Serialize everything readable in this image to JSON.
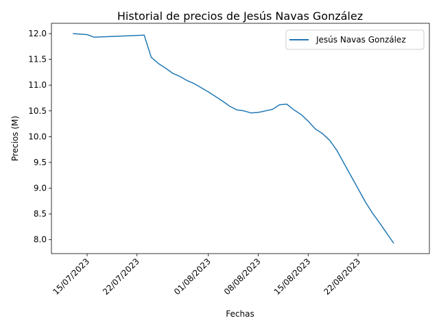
{
  "chart_data": {
    "type": "line",
    "title": "Historial de precios de Jesús Navas González",
    "xlabel": "Fechas",
    "ylabel": "Precios (M)",
    "x_tick_labels": [
      "15/07/2023",
      "22/07/2023",
      "01/08/2023",
      "08/08/2023",
      "15/08/2023",
      "22/08/2023"
    ],
    "x_tick_dates": [
      "2023-07-15",
      "2023-07-22",
      "2023-08-01",
      "2023-08-08",
      "2023-08-15",
      "2023-08-22"
    ],
    "y_ticks": [
      8.0,
      8.5,
      9.0,
      9.5,
      10.0,
      10.5,
      11.0,
      11.5,
      12.0
    ],
    "y_tick_labels": [
      "8.0",
      "8.5",
      "9.0",
      "9.5",
      "10.0",
      "10.5",
      "11.0",
      "11.5",
      "12.0"
    ],
    "xlim": [
      "2023-07-10",
      "2023-09-01"
    ],
    "ylim": [
      7.73,
      12.2
    ],
    "grid": false,
    "legend_position": "top-right",
    "series": [
      {
        "name": "Jesús Navas González",
        "color": "#1f77b4",
        "points": [
          {
            "x": "2023-07-13",
            "y": 12.0
          },
          {
            "x": "2023-07-15",
            "y": 11.98
          },
          {
            "x": "2023-07-16",
            "y": 11.93
          },
          {
            "x": "2023-07-23",
            "y": 11.97
          },
          {
            "x": "2023-07-24",
            "y": 11.54
          },
          {
            "x": "2023-07-25",
            "y": 11.42
          },
          {
            "x": "2023-07-26",
            "y": 11.33
          },
          {
            "x": "2023-07-27",
            "y": 11.23
          },
          {
            "x": "2023-07-28",
            "y": 11.17
          },
          {
            "x": "2023-07-29",
            "y": 11.09
          },
          {
            "x": "2023-07-30",
            "y": 11.03
          },
          {
            "x": "2023-07-31",
            "y": 10.95
          },
          {
            "x": "2023-08-01",
            "y": 10.87
          },
          {
            "x": "2023-08-02",
            "y": 10.78
          },
          {
            "x": "2023-08-03",
            "y": 10.69
          },
          {
            "x": "2023-08-04",
            "y": 10.59
          },
          {
            "x": "2023-08-05",
            "y": 10.52
          },
          {
            "x": "2023-08-06",
            "y": 10.5
          },
          {
            "x": "2023-08-07",
            "y": 10.46
          },
          {
            "x": "2023-08-08",
            "y": 10.47
          },
          {
            "x": "2023-08-09",
            "y": 10.5
          },
          {
            "x": "2023-08-10",
            "y": 10.53
          },
          {
            "x": "2023-08-11",
            "y": 10.62
          },
          {
            "x": "2023-08-12",
            "y": 10.63
          },
          {
            "x": "2023-08-13",
            "y": 10.52
          },
          {
            "x": "2023-08-14",
            "y": 10.43
          },
          {
            "x": "2023-08-15",
            "y": 10.3
          },
          {
            "x": "2023-08-16",
            "y": 10.15
          },
          {
            "x": "2023-08-17",
            "y": 10.06
          },
          {
            "x": "2023-08-18",
            "y": 9.93
          },
          {
            "x": "2023-08-19",
            "y": 9.74
          },
          {
            "x": "2023-08-20",
            "y": 9.49
          },
          {
            "x": "2023-08-21",
            "y": 9.24
          },
          {
            "x": "2023-08-22",
            "y": 8.99
          },
          {
            "x": "2023-08-23",
            "y": 8.74
          },
          {
            "x": "2023-08-24",
            "y": 8.52
          },
          {
            "x": "2023-08-25",
            "y": 8.33
          },
          {
            "x": "2023-08-26",
            "y": 8.13
          },
          {
            "x": "2023-08-27",
            "y": 7.93
          }
        ]
      }
    ]
  }
}
